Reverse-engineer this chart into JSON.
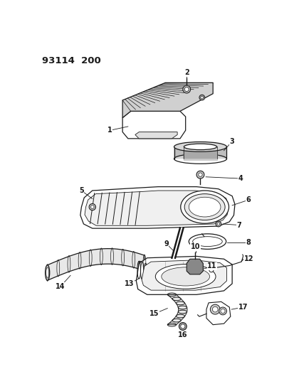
{
  "title": "93114  200",
  "bg_color": "#ffffff",
  "line_color": "#1a1a1a",
  "fig_width": 4.14,
  "fig_height": 5.33,
  "dpi": 100,
  "label_fontsize": 7.0
}
